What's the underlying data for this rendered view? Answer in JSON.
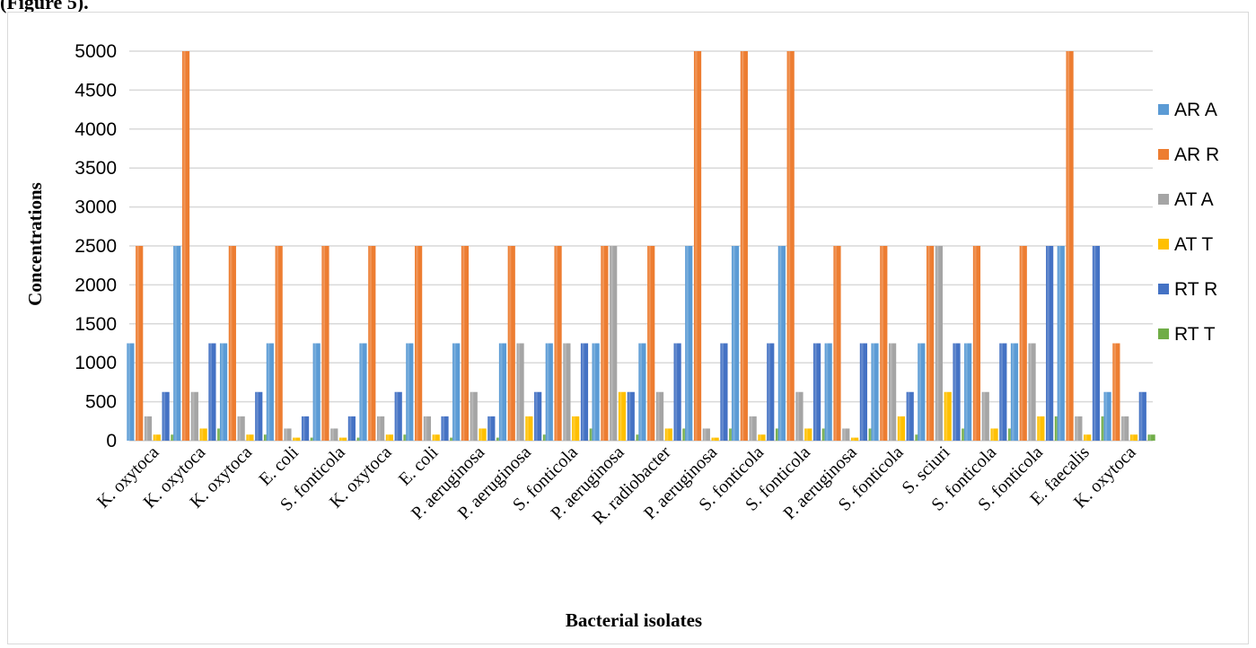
{
  "figure_caption": "(Figure 5).",
  "chart_data": {
    "type": "bar",
    "title": "",
    "xlabel": "Bacterial isolates",
    "ylabel": "Concentrations",
    "ylim": [
      0,
      5000
    ],
    "yticks": [
      0,
      500,
      1000,
      1500,
      2000,
      2500,
      3000,
      3500,
      4000,
      4500,
      5000
    ],
    "grid": true,
    "legend_position": "right",
    "categories": [
      "K. oxytoca",
      "K. oxytoca",
      "K. oxytoca",
      "E. coli",
      "S. fonticola",
      "K. oxytoca",
      "E. coli",
      "P. aeruginosa",
      "P. aeruginosa",
      "S. fonticola",
      "P. aeruginosa",
      "R. radiobacter",
      "P. aeruginosa",
      "S. fonticola",
      "S. fonticola",
      "P. aeruginosa",
      "S. fonticola",
      "S. sciuri",
      "S. fonticola",
      "S. fonticola",
      "E. faecalis",
      "K. oxytoca"
    ],
    "series": [
      {
        "name": "AR A",
        "color": "#5b9bd5",
        "values": [
          1250,
          2500,
          1250,
          1250,
          1250,
          1250,
          1250,
          1250,
          1250,
          1250,
          1250,
          1250,
          2500,
          2500,
          2500,
          1250,
          1250,
          1250,
          1250,
          1250,
          2500,
          625
        ]
      },
      {
        "name": "AR R",
        "color": "#ed7d31",
        "values": [
          2500,
          5000,
          2500,
          2500,
          2500,
          2500,
          2500,
          2500,
          2500,
          2500,
          2500,
          2500,
          5000,
          5000,
          5000,
          2500,
          2500,
          2500,
          2500,
          2500,
          5000,
          1250
        ]
      },
      {
        "name": "AT A",
        "color": "#a5a5a5",
        "values": [
          312,
          625,
          312,
          156,
          156,
          312,
          312,
          625,
          1250,
          1250,
          2500,
          625,
          156,
          312,
          625,
          156,
          1250,
          2500,
          625,
          1250,
          312,
          312
        ]
      },
      {
        "name": "AT T",
        "color": "#ffc000",
        "values": [
          78,
          156,
          78,
          39,
          39,
          78,
          78,
          156,
          312,
          312,
          625,
          156,
          39,
          78,
          156,
          39,
          312,
          625,
          156,
          312,
          78,
          78
        ]
      },
      {
        "name": "RT R",
        "color": "#4472c4",
        "values": [
          625,
          1250,
          625,
          312,
          312,
          625,
          312,
          312,
          625,
          1250,
          625,
          1250,
          1250,
          1250,
          1250,
          1250,
          625,
          1250,
          1250,
          2500,
          2500,
          625
        ]
      },
      {
        "name": "RT T",
        "color": "#70ad47",
        "values": [
          78,
          156,
          78,
          39,
          39,
          78,
          39,
          39,
          78,
          156,
          78,
          156,
          156,
          156,
          156,
          156,
          78,
          156,
          156,
          312,
          312,
          78
        ]
      }
    ]
  }
}
